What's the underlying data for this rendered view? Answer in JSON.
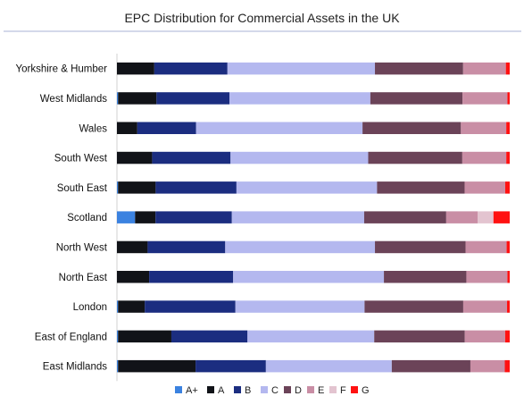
{
  "chart_data": {
    "type": "bar",
    "orientation": "horizontal",
    "stacked": true,
    "stack_mode": "percent",
    "title": "EPC Distribution for Commercial Assets in the UK",
    "xlabel": "",
    "ylabel": "",
    "xlim": [
      0,
      100
    ],
    "grid": false,
    "legend_position": "bottom",
    "categories": [
      "Yorkshire & Humber",
      "West Midlands",
      "Wales",
      "South West",
      "South East",
      "Scotland",
      "North West",
      "North East",
      "London",
      "East of England",
      "East Midlands"
    ],
    "series": [
      {
        "name": "A+",
        "color": "#3b82e0",
        "values": [
          0.0,
          0.3,
          0.0,
          0.0,
          0.3,
          4.8,
          0.0,
          0.0,
          0.3,
          0.3,
          0.3
        ]
      },
      {
        "name": "A",
        "color": "#111318",
        "values": [
          9.7,
          10.0,
          5.3,
          9.2,
          10.0,
          5.4,
          8.0,
          8.4,
          7.0,
          14.0,
          20.5
        ]
      },
      {
        "name": "B",
        "color": "#1b2d80",
        "values": [
          19.0,
          19.0,
          15.3,
          20.5,
          21.5,
          20.2,
          20.2,
          21.9,
          23.8,
          20.0,
          18.6
        ]
      },
      {
        "name": "C",
        "color": "#b4b8ef",
        "values": [
          38.3,
          36.7,
          43.3,
          36.0,
          37.4,
          35.0,
          39.0,
          39.3,
          33.9,
          33.3,
          33.3
        ]
      },
      {
        "name": "D",
        "color": "#6b4358",
        "values": [
          22.9,
          24.0,
          25.6,
          24.6,
          23.3,
          21.7,
          23.6,
          21.5,
          25.9,
          23.8,
          20.8
        ]
      },
      {
        "name": "E",
        "color": "#c98ea5",
        "values": [
          11.1,
          11.7,
          11.8,
          11.5,
          10.8,
          8.3,
          10.7,
          10.7,
          11.5,
          10.6,
          9.1
        ]
      },
      {
        "name": "F",
        "color": "#e3c4d0",
        "values": [
          0.0,
          0.0,
          0.0,
          0.0,
          0.0,
          4.2,
          0.0,
          0.0,
          0.0,
          0.0,
          0.0
        ]
      },
      {
        "name": "G",
        "color": "#ff1111",
        "values": [
          1.0,
          0.6,
          0.9,
          0.9,
          1.2,
          4.3,
          0.8,
          0.6,
          0.7,
          1.2,
          1.3
        ]
      }
    ]
  }
}
